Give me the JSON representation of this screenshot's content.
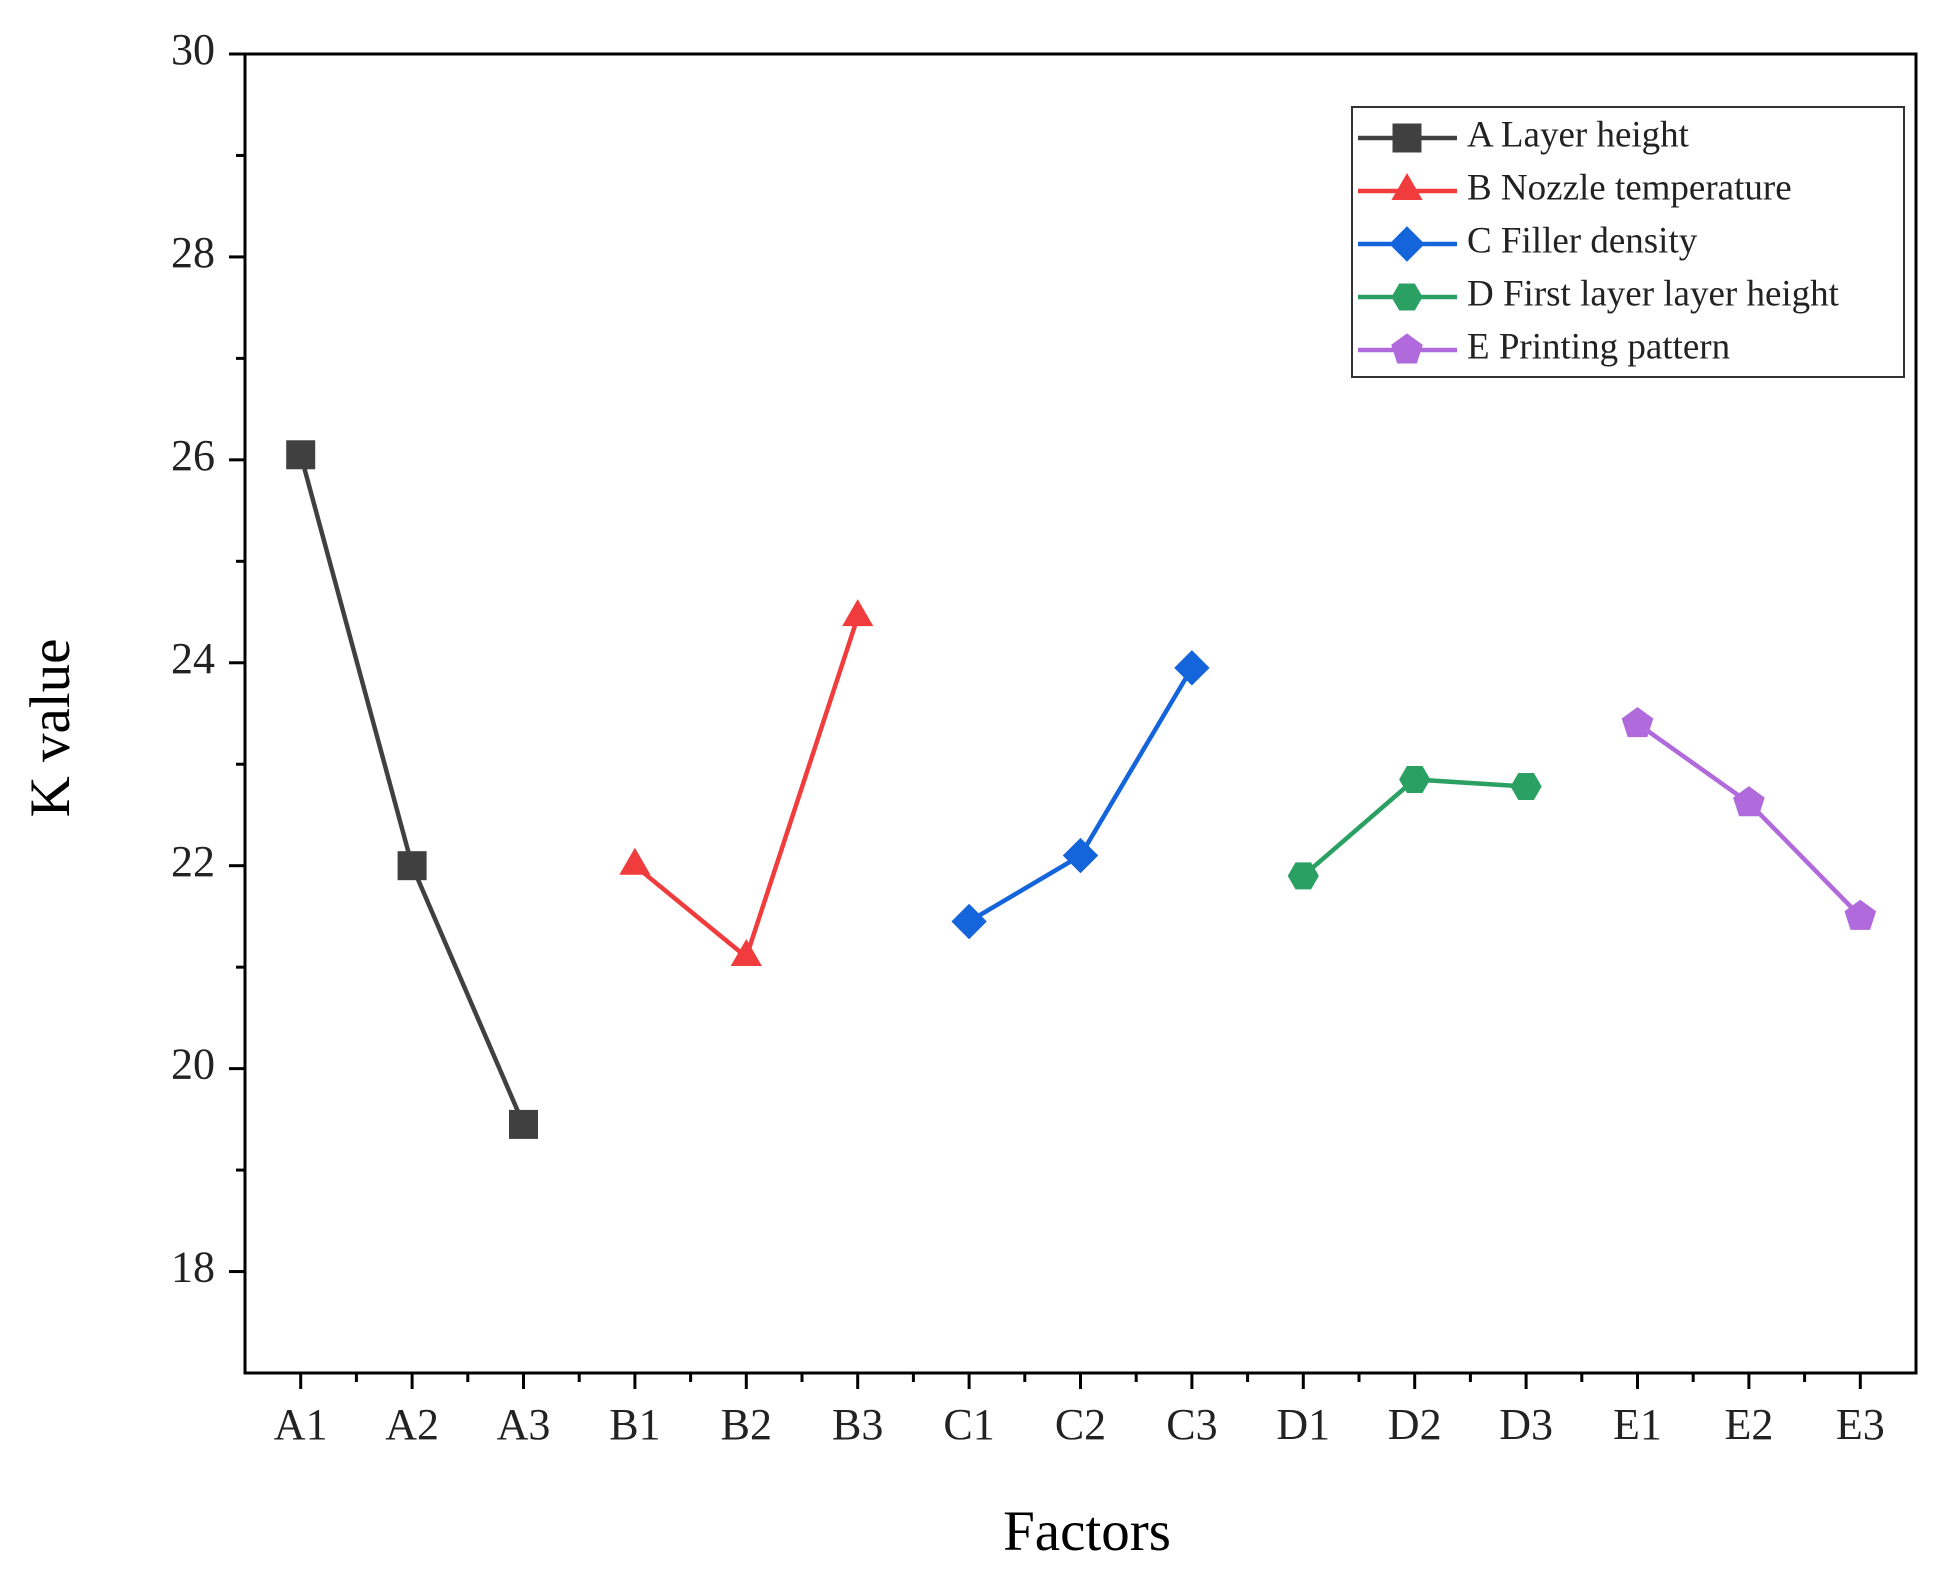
{
  "chart_data": {
    "type": "line",
    "xlabel": "Factors",
    "ylabel": "K value",
    "categories": [
      "A1",
      "A2",
      "A3",
      "B1",
      "B2",
      "B3",
      "C1",
      "C2",
      "C3",
      "D1",
      "D2",
      "D3",
      "E1",
      "E2",
      "E3"
    ],
    "series": [
      {
        "name": "A Layer height",
        "color": "#404040",
        "marker": "square",
        "values": [
          26.05,
          22.0,
          19.45,
          null,
          null,
          null,
          null,
          null,
          null,
          null,
          null,
          null,
          null,
          null,
          null
        ]
      },
      {
        "name": "B Nozzle temperature",
        "color": "#f03c3c",
        "marker": "triangle",
        "values": [
          null,
          null,
          null,
          22.0,
          21.1,
          24.45,
          null,
          null,
          null,
          null,
          null,
          null,
          null,
          null,
          null
        ]
      },
      {
        "name": "C Filler density",
        "color": "#1464dc",
        "marker": "diamond",
        "values": [
          null,
          null,
          null,
          null,
          null,
          null,
          21.45,
          22.1,
          23.95,
          null,
          null,
          null,
          null,
          null,
          null
        ]
      },
      {
        "name": "D First layer layer height",
        "color": "#2aa063",
        "marker": "hexagon",
        "values": [
          null,
          null,
          null,
          null,
          null,
          null,
          null,
          null,
          null,
          21.9,
          22.85,
          22.78,
          null,
          null,
          null
        ]
      },
      {
        "name": "E Printing pattern",
        "color": "#b06adc",
        "marker": "pentagon",
        "values": [
          null,
          null,
          null,
          null,
          null,
          null,
          null,
          null,
          null,
          null,
          null,
          null,
          23.4,
          22.62,
          21.5
        ]
      }
    ],
    "ylim": [
      17,
      30
    ],
    "yticks": [
      18,
      20,
      22,
      24,
      26,
      28,
      30
    ],
    "grid": false,
    "legend": "upper right"
  }
}
